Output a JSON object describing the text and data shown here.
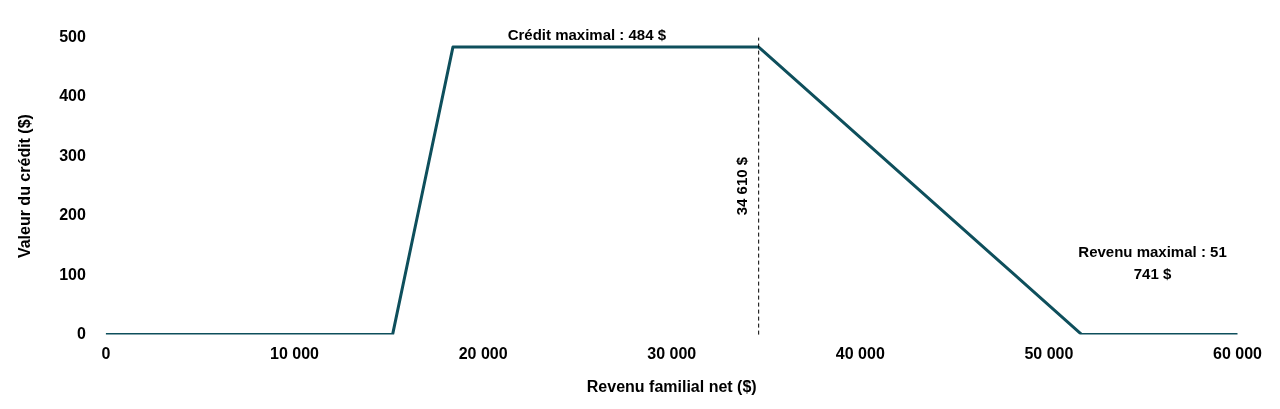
{
  "chart_data": {
    "type": "line",
    "xlabel": "Revenu familial net ($)",
    "ylabel": "Valeur du crédit ($)",
    "x": [
      0,
      15200,
      18400,
      34610,
      51741,
      60000
    ],
    "series": [
      {
        "color": "#0e4f5c",
        "values": [
          0,
          0,
          484,
          484,
          0,
          0
        ]
      }
    ],
    "xlim": [
      0,
      60000
    ],
    "xticks": [
      {
        "value": 0,
        "label": "0"
      },
      {
        "value": 10000,
        "label": "10 000"
      },
      {
        "value": 20000,
        "label": "20 000"
      },
      {
        "value": 30000,
        "label": "30 000"
      },
      {
        "value": 40000,
        "label": "40 000"
      },
      {
        "value": 50000,
        "label": "50 000"
      },
      {
        "value": 60000,
        "label": "60 000"
      }
    ],
    "ylim": [
      0,
      500
    ],
    "yticks": [
      0,
      100,
      200,
      300,
      400,
      500
    ],
    "grid": false,
    "legend": false,
    "marker": "none",
    "line_style": "solid",
    "ref_lines": [
      {
        "axis": "x",
        "value": 34610,
        "label": "34 610 $",
        "color": "#000000",
        "line_style": "dashed"
      }
    ],
    "annotations": [
      {
        "text": "Crédit maximal : 484 $",
        "x": 25500,
        "y": 484
      },
      "Revenu maximal : 51 741 $"
    ]
  }
}
